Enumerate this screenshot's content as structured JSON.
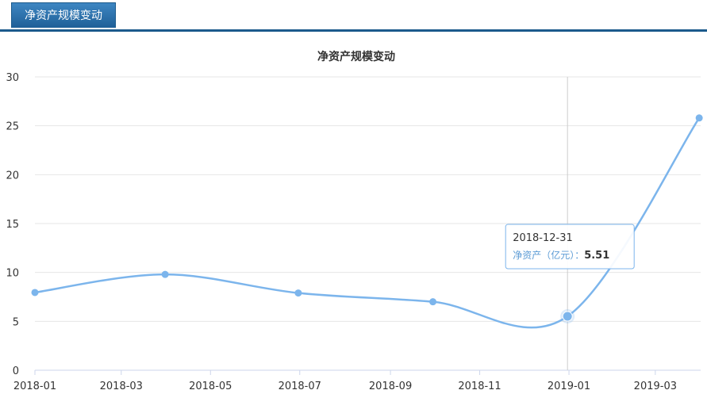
{
  "tabs": [
    {
      "label": "净资产规模变动"
    }
  ],
  "chart_data": {
    "type": "line",
    "title": "净资产规模变动",
    "xlabel": "",
    "ylabel": "",
    "ylim": [
      0,
      30
    ],
    "y_ticks": [
      0,
      5,
      10,
      15,
      20,
      25,
      30
    ],
    "x_ticks": [
      "2018-01",
      "2018-03",
      "2018-05",
      "2018-07",
      "2018-09",
      "2018-11",
      "2019-01",
      "2019-03"
    ],
    "series": [
      {
        "name": "净资产（亿元）",
        "color": "#7cb5ec",
        "points": [
          {
            "x": "2018-01-01",
            "y": 7.95
          },
          {
            "x": "2018-03-31",
            "y": 9.8
          },
          {
            "x": "2018-06-30",
            "y": 7.9
          },
          {
            "x": "2018-09-30",
            "y": 7.0
          },
          {
            "x": "2018-12-31",
            "y": 5.51
          },
          {
            "x": "2019-03-31",
            "y": 25.8
          }
        ]
      }
    ],
    "tooltip": {
      "date": "2018-12-31",
      "series_label": "净资产（亿元）：",
      "value": "5.51",
      "point_index": 4
    },
    "grid": true
  }
}
